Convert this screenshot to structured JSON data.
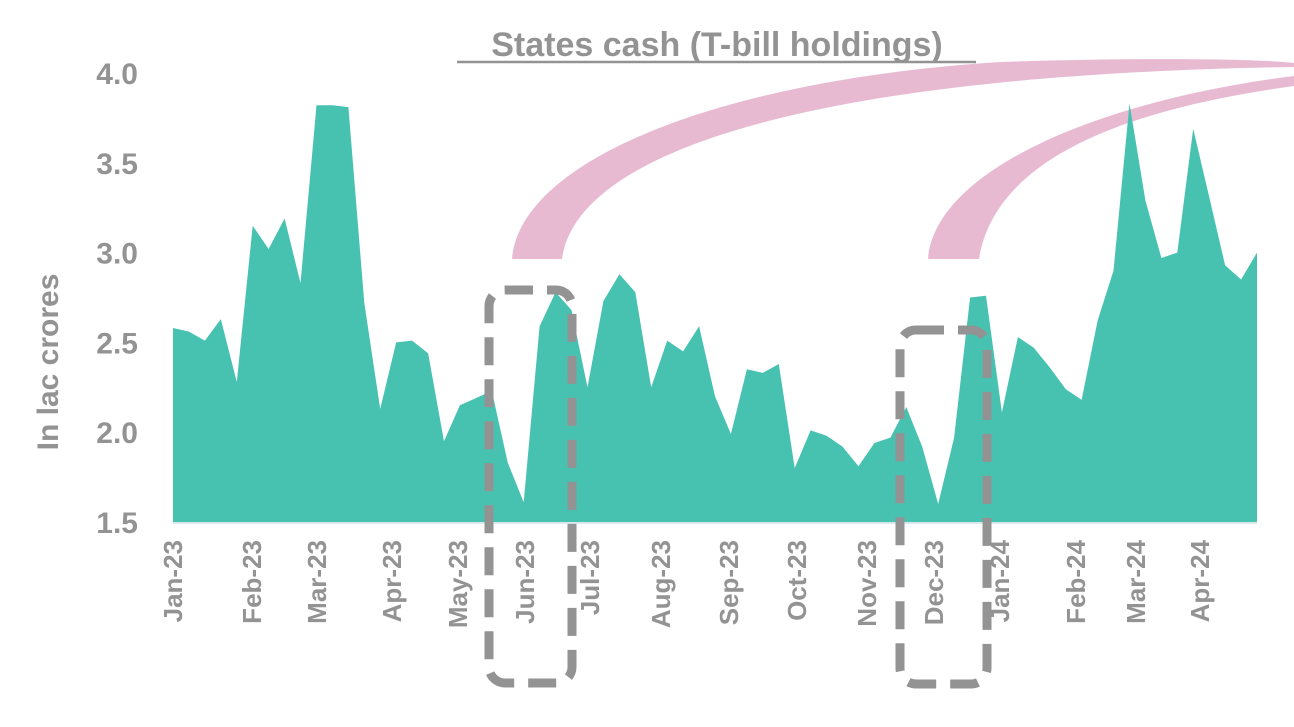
{
  "chart_data": {
    "type": "area",
    "title": "States cash (T-bill holdings)",
    "xlabel": "",
    "ylabel": "In lac crores",
    "ylim": [
      1.5,
      4.0
    ],
    "yticks": [
      "4.0",
      "3.5",
      "3.0",
      "2.5",
      "2.0",
      "1.5"
    ],
    "grid": false,
    "legend": null,
    "x_tick_labels": [
      "Jan-23",
      "Feb-23",
      "Mar-23",
      "Apr-23",
      "May-23",
      "Jun-23",
      "Jul-23",
      "Aug-23",
      "Sep-23",
      "Oct-23",
      "Nov-23",
      "Dec-23",
      "Jan-24",
      "Feb-24",
      "Mar-24",
      "Apr-24"
    ],
    "series": [
      {
        "name": "States cash (T-bill holdings)",
        "color": "#48C2B0",
        "frequency": "weekly",
        "values": [
          2.58,
          2.56,
          2.51,
          2.63,
          2.28,
          3.15,
          3.02,
          3.19,
          2.83,
          3.82,
          3.82,
          3.81,
          2.72,
          2.13,
          2.5,
          2.51,
          2.44,
          1.95,
          2.15,
          2.19,
          2.23,
          1.83,
          1.61,
          2.59,
          2.78,
          2.68,
          2.25,
          2.73,
          2.88,
          2.78,
          2.25,
          2.51,
          2.45,
          2.59,
          2.2,
          1.99,
          2.35,
          2.33,
          2.38,
          1.8,
          2.01,
          1.98,
          1.92,
          1.81,
          1.94,
          1.97,
          2.14,
          1.92,
          1.6,
          1.97,
          2.75,
          2.76,
          2.11,
          2.53,
          2.47,
          2.36,
          2.24,
          2.18,
          2.62,
          2.9,
          3.83,
          3.29,
          2.97,
          3.0,
          3.69,
          3.31,
          2.93,
          2.85,
          3.0
        ]
      }
    ],
    "annotations": [
      {
        "type": "dashed-box",
        "label": "Jun-23 dip",
        "around": "Jun-23",
        "color": "#939393"
      },
      {
        "type": "dashed-box",
        "label": "Dec-23 dip",
        "around": "Dec-23",
        "color": "#939393"
      },
      {
        "type": "curved-arrow",
        "from": "Jun-23 dip",
        "color": "#E8BAD2"
      },
      {
        "type": "curved-arrow",
        "from": "Dec-23 dip",
        "color": "#E8BAD2"
      }
    ]
  },
  "colors": {
    "area": "#48C2B0",
    "text": "#939393",
    "annotation_box": "#939393",
    "arc": "#E8BAD2",
    "baseline": "#D8E8EC"
  }
}
